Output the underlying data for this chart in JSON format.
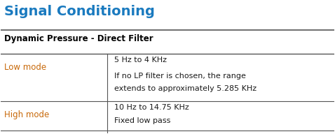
{
  "title": "Signal Conditioning",
  "title_color": "#1a7abf",
  "subtitle": "Dynamic Pressure - Direct Filter",
  "subtitle_color": "#000000",
  "col1_label_low": "Low mode",
  "col1_label_high": "High mode",
  "col1_color": "#c8690a",
  "col2_low_line1": "5 Hz to 4 KHz",
  "col2_low_line2": "If no LP filter is chosen, the range",
  "col2_low_line3": "extends to approximately 5.285 KHz",
  "col2_high_line1": "10 Hz to 14.75 KHz",
  "col2_high_line2": "Fixed low pass",
  "text_color": "#1a1a1a",
  "bg_color": "#ffffff",
  "line_color": "#555555",
  "col_split": 0.32
}
